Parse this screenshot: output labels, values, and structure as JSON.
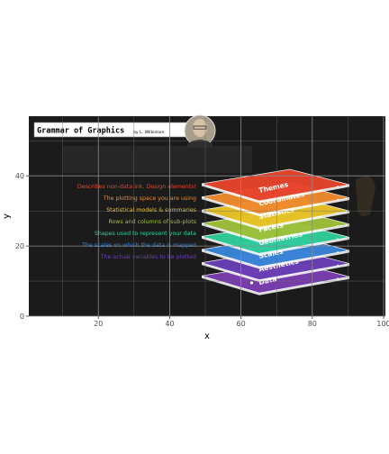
{
  "chart_data": {
    "type": "scatter",
    "xlabel": "x",
    "ylabel": "y",
    "xlim": [
      0.5,
      100.5
    ],
    "ylim": [
      0,
      57
    ],
    "x_ticks": [
      20,
      40,
      60,
      80,
      100
    ],
    "y_ticks": [
      0,
      20,
      40
    ],
    "grid": true,
    "points": [
      {
        "x": 63,
        "y": 9.5
      }
    ],
    "background_image": {
      "title": "Grammar of Graphics",
      "byline": "by L. Wilkinson",
      "layers": [
        {
          "name": "Themes",
          "description": "Describes non-data ink. Design elements!",
          "color": "#e8442c"
        },
        {
          "name": "Coordinates",
          "description": "The plotting space you are using",
          "color": "#ef8b2e"
        },
        {
          "name": "Statistics",
          "description": "Statistical models & summaries",
          "color": "#e9c327"
        },
        {
          "name": "Facets",
          "description": "Rows and columns of sub-plots",
          "color": "#9fc13a"
        },
        {
          "name": "Geometries",
          "description": "Shapes used to represent your data",
          "color": "#2fcf9c"
        },
        {
          "name": "Scales",
          "description": "The scales on which the data is mapped",
          "color": "#3a86d8"
        },
        {
          "name": "Aesthetics",
          "description": "The actual variables to be plotted",
          "color": "#6a3fb5"
        },
        {
          "name": "Data",
          "description": "",
          "color": "#7a3fb0"
        }
      ]
    }
  }
}
